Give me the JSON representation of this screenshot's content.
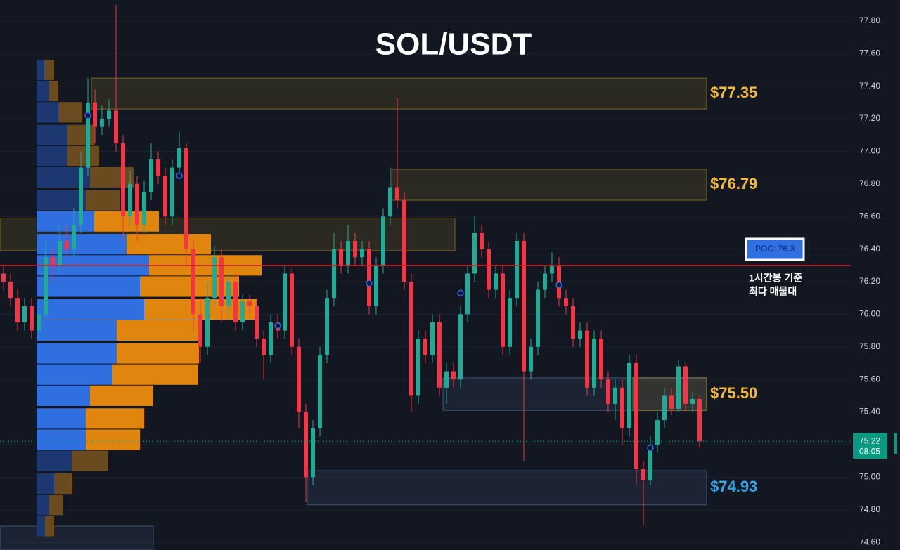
{
  "chart_data": {
    "type": "candlestick",
    "title": "SOL/USDT",
    "ylim": [
      74.553,
      77.929
    ],
    "yticks": [
      {
        "value": 74.6,
        "label": "74.60"
      },
      {
        "value": 74.8,
        "label": "74.80"
      },
      {
        "value": 75,
        "label": "75.00"
      },
      {
        "value": 75.2,
        "label": "75.20"
      },
      {
        "value": 75.4,
        "label": "75.40"
      },
      {
        "value": 75.6,
        "label": "75.60"
      },
      {
        "value": 75.8,
        "label": "75.80"
      },
      {
        "value": 76,
        "label": "76.00"
      },
      {
        "value": 76.2,
        "label": "76.20"
      },
      {
        "value": 76.4,
        "label": "76.40"
      },
      {
        "value": 76.6,
        "label": "76.60"
      },
      {
        "value": 76.8,
        "label": "76.80"
      },
      {
        "value": 77,
        "label": "77.00"
      },
      {
        "value": 77.2,
        "label": "77.20"
      },
      {
        "value": 77.4,
        "label": "77.40"
      },
      {
        "value": 77.6,
        "label": "77.60"
      },
      {
        "value": 77.8,
        "label": "77.80"
      }
    ],
    "up_color": "#22ab94",
    "down_color": "#f23645",
    "candles": [
      [
        76.25,
        76.3,
        76.15,
        76.2
      ],
      [
        76.2,
        76.25,
        76.05,
        76.1
      ],
      [
        76.1,
        76.15,
        75.9,
        75.95
      ],
      [
        75.95,
        76.1,
        75.9,
        76.05
      ],
      [
        76.05,
        76.1,
        75.85,
        75.9
      ],
      [
        75.9,
        76.05,
        75.85,
        76.0
      ],
      [
        76.0,
        76.45,
        75.98,
        76.35
      ],
      [
        76.35,
        76.4,
        76.2,
        76.3
      ],
      [
        76.3,
        76.55,
        76.25,
        76.45
      ],
      [
        76.45,
        76.55,
        76.35,
        76.4
      ],
      [
        76.4,
        76.65,
        76.35,
        76.55
      ],
      [
        76.55,
        77.0,
        76.5,
        76.9
      ],
      [
        76.9,
        77.45,
        76.85,
        77.3
      ],
      [
        77.3,
        77.38,
        77.05,
        77.15
      ],
      [
        77.15,
        77.28,
        77.1,
        77.2
      ],
      [
        77.2,
        77.32,
        77.15,
        77.25
      ],
      [
        77.25,
        77.9,
        77.0,
        77.05
      ],
      [
        77.05,
        77.1,
        76.45,
        76.6
      ],
      [
        76.6,
        76.88,
        76.55,
        76.8
      ],
      [
        76.8,
        76.85,
        76.45,
        76.55
      ],
      [
        76.55,
        76.82,
        76.5,
        76.75
      ],
      [
        76.75,
        77.05,
        76.7,
        76.95
      ],
      [
        76.95,
        77.0,
        76.8,
        76.85
      ],
      [
        76.85,
        76.9,
        76.55,
        76.6
      ],
      [
        76.6,
        76.95,
        76.55,
        76.9
      ],
      [
        76.9,
        77.12,
        76.85,
        77.02
      ],
      [
        77.02,
        77.05,
        76.3,
        76.4
      ],
      [
        76.4,
        76.45,
        75.9,
        76.0
      ],
      [
        76.0,
        76.1,
        75.7,
        75.8
      ],
      [
        75.8,
        76.2,
        75.75,
        76.1
      ],
      [
        76.1,
        76.42,
        76.05,
        76.35
      ],
      [
        76.35,
        76.4,
        75.95,
        76.05
      ],
      [
        76.05,
        76.25,
        76.0,
        76.2
      ],
      [
        76.2,
        76.25,
        75.9,
        75.95
      ],
      [
        75.95,
        76.12,
        75.9,
        76.08
      ],
      [
        76.08,
        76.12,
        76.0,
        76.05
      ],
      [
        76.05,
        76.1,
        75.8,
        75.85
      ],
      [
        75.85,
        75.9,
        75.6,
        75.75
      ],
      [
        75.75,
        76.0,
        75.7,
        75.95
      ],
      [
        75.95,
        76.0,
        75.85,
        75.9
      ],
      [
        75.9,
        76.3,
        75.85,
        76.25
      ],
      [
        76.25,
        76.28,
        75.75,
        75.8
      ],
      [
        75.8,
        75.85,
        75.3,
        75.4
      ],
      [
        75.4,
        75.45,
        74.85,
        75.0
      ],
      [
        75.0,
        75.35,
        74.95,
        75.3
      ],
      [
        75.3,
        75.8,
        75.25,
        75.75
      ],
      [
        75.75,
        76.15,
        75.7,
        76.1
      ],
      [
        76.1,
        76.5,
        76.05,
        76.4
      ],
      [
        76.4,
        76.45,
        76.25,
        76.3
      ],
      [
        76.3,
        76.55,
        76.25,
        76.45
      ],
      [
        76.45,
        76.5,
        76.3,
        76.35
      ],
      [
        76.35,
        76.45,
        76.3,
        76.4
      ],
      [
        76.4,
        76.45,
        76.0,
        76.05
      ],
      [
        76.05,
        76.35,
        76.0,
        76.3
      ],
      [
        76.3,
        76.65,
        76.25,
        76.6
      ],
      [
        76.6,
        76.9,
        76.55,
        76.78
      ],
      [
        76.78,
        77.33,
        76.65,
        76.7
      ],
      [
        76.7,
        76.75,
        76.15,
        76.2
      ],
      [
        76.2,
        76.25,
        75.4,
        75.5
      ],
      [
        75.5,
        75.9,
        75.45,
        75.85
      ],
      [
        75.85,
        75.9,
        75.7,
        75.75
      ],
      [
        75.75,
        76.0,
        75.7,
        75.95
      ],
      [
        75.95,
        76.0,
        75.5,
        75.55
      ],
      [
        75.55,
        75.7,
        75.45,
        75.65
      ],
      [
        75.65,
        75.7,
        75.55,
        75.6
      ],
      [
        75.6,
        76.05,
        75.55,
        76.0
      ],
      [
        76.0,
        76.3,
        75.95,
        76.25
      ],
      [
        76.25,
        76.6,
        76.2,
        76.5
      ],
      [
        76.5,
        76.55,
        76.35,
        76.4
      ],
      [
        76.4,
        76.45,
        76.1,
        76.15
      ],
      [
        76.15,
        76.3,
        76.1,
        76.25
      ],
      [
        76.25,
        76.3,
        75.75,
        75.8
      ],
      [
        75.8,
        76.15,
        75.75,
        76.1
      ],
      [
        76.1,
        76.5,
        76.05,
        76.45
      ],
      [
        76.45,
        76.5,
        75.1,
        75.65
      ],
      [
        75.65,
        75.85,
        75.6,
        75.8
      ],
      [
        75.8,
        76.2,
        75.75,
        76.15
      ],
      [
        76.15,
        76.3,
        76.1,
        76.25
      ],
      [
        76.25,
        76.38,
        76.2,
        76.3
      ],
      [
        76.3,
        76.35,
        76.05,
        76.1
      ],
      [
        76.1,
        76.15,
        76.0,
        76.05
      ],
      [
        76.05,
        76.1,
        75.8,
        75.85
      ],
      [
        75.85,
        75.95,
        75.8,
        75.9
      ],
      [
        75.9,
        75.95,
        75.5,
        75.55
      ],
      [
        75.55,
        75.9,
        75.5,
        75.85
      ],
      [
        75.85,
        75.9,
        75.55,
        75.6
      ],
      [
        75.6,
        75.65,
        75.4,
        75.45
      ],
      [
        75.45,
        75.6,
        75.35,
        75.55
      ],
      [
        75.55,
        75.6,
        75.2,
        75.3
      ],
      [
        75.3,
        75.75,
        75.25,
        75.7
      ],
      [
        75.7,
        75.75,
        74.95,
        75.05
      ],
      [
        75.05,
        75.1,
        74.7,
        74.98
      ],
      [
        74.98,
        75.25,
        74.95,
        75.2
      ],
      [
        75.2,
        75.4,
        75.15,
        75.35
      ],
      [
        75.35,
        75.55,
        75.3,
        75.5
      ],
      [
        75.5,
        75.55,
        75.38,
        75.42
      ],
      [
        75.42,
        75.72,
        75.4,
        75.68
      ],
      [
        75.68,
        75.7,
        75.4,
        75.45
      ],
      [
        75.45,
        75.52,
        75.4,
        75.48
      ],
      [
        75.48,
        75.5,
        75.18,
        75.22
      ]
    ],
    "markers": [
      {
        "index": 12,
        "price": 77.22
      },
      {
        "index": 25,
        "price": 76.85
      },
      {
        "index": 39,
        "price": 75.93
      },
      {
        "index": 52,
        "price": 76.19
      },
      {
        "index": 65,
        "price": 76.13
      },
      {
        "index": 79,
        "price": 76.18
      },
      {
        "index": 92,
        "price": 75.18
      }
    ],
    "volume_profile": {
      "prices": [
        77.5,
        77.37,
        77.24,
        77.1,
        76.97,
        76.84,
        76.7,
        76.57,
        76.43,
        76.3,
        76.17,
        76.03,
        75.9,
        75.76,
        75.63,
        75.5,
        75.36,
        75.23,
        75.1,
        74.96,
        74.83,
        74.7
      ],
      "buy": [
        11,
        18,
        31,
        44,
        44,
        76,
        70,
        82,
        128,
        160,
        147,
        153,
        114,
        114,
        108,
        76,
        70,
        70,
        50,
        25,
        18,
        12
      ],
      "sell": [
        14,
        13,
        34,
        39,
        45,
        62,
        48,
        92,
        120,
        160,
        141,
        161,
        122,
        117,
        122,
        90,
        83,
        77,
        52,
        26,
        20,
        13
      ],
      "value_area": [
        75.23,
        76.57
      ],
      "buy_color": "#2f6fe0",
      "sell_color": "#e0860f",
      "buy_dim_color": "#1d3770",
      "sell_dim_color": "#6a4a1f"
    },
    "zones": [
      {
        "label": "$77.35",
        "top": 77.45,
        "bottom": 77.26,
        "start": 12.5,
        "end": 100,
        "color": "#c9a227",
        "label_color": "#f5b82e"
      },
      {
        "label": "$76.79",
        "top": 76.89,
        "bottom": 76.7,
        "start": 55.2,
        "end": 100,
        "color": "#c9a227",
        "label_color": "#f5b82e"
      },
      {
        "top": 76.59,
        "bottom": 76.39,
        "start": -0.5,
        "end": 64.2,
        "color": "#c9a227"
      },
      {
        "top": 75.61,
        "bottom": 75.41,
        "start": 62.5,
        "end": 100,
        "color": "#5d7fa8"
      },
      {
        "label": "$75.50",
        "top": 75.61,
        "bottom": 75.41,
        "start": 89.5,
        "end": 100,
        "color": "#c9a227",
        "label_color": "#f5b82e"
      },
      {
        "label": "$74.93",
        "top": 75.04,
        "bottom": 74.83,
        "start": 43.2,
        "end": 100,
        "color": "#5d7fa8",
        "label_color": "#2ea6e8"
      },
      {
        "top": 74.7,
        "bottom": 74.553,
        "start": -0.5,
        "end": 21.3,
        "color": "#5d7fa8"
      }
    ],
    "poc": {
      "value": 76.3,
      "label": "POC: 76.3",
      "note": [
        "1시간봉 기준",
        "최다 매물대"
      ],
      "color": "#d01f1f"
    },
    "last": {
      "value": 75.22,
      "countdown": "08:05",
      "color": "#089981"
    }
  }
}
